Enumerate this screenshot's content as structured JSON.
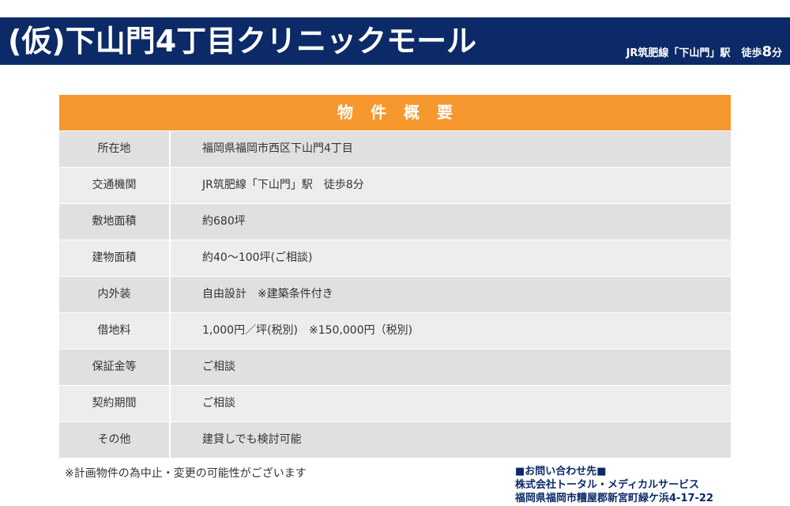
{
  "header": {
    "title": "(仮)下山門4丁目クリニックモール",
    "access_line": "JR筑肥線「下山門」駅",
    "access_walk": "徒歩",
    "access_minutes": "8",
    "access_unit": "分"
  },
  "table": {
    "heading": "物件概要",
    "rows": [
      {
        "label": "所在地",
        "value": "福岡県福岡市西区下山門4丁目"
      },
      {
        "label": "交通機関",
        "value": "JR筑肥線「下山門」駅　徒歩8分"
      },
      {
        "label": "敷地面積",
        "value": "約680坪"
      },
      {
        "label": "建物面積",
        "value": "約40～100坪(ご相談)"
      },
      {
        "label": "内外装",
        "value": "自由設計　※建築条件付き"
      },
      {
        "label": "借地料",
        "value": "1,000円／坪(税別)　※150,000円（税別)"
      },
      {
        "label": "保証金等",
        "value": "ご相談"
      },
      {
        "label": "契約期間",
        "value": "ご相談"
      },
      {
        "label": "その他",
        "value": "建貸しでも検討可能"
      }
    ]
  },
  "footer": {
    "note": "※計画物件の為中止・変更の可能性がございます",
    "contact_heading": "■お問い合わせ先■",
    "company": "株式会社トータル・メディカルサービス",
    "address": "福岡県福岡市糟屋郡新宮町緑ケ浜4-17-22"
  },
  "colors": {
    "navy": "#0c2a67",
    "orange": "#f6982d",
    "row_dark": "#e0e0e0",
    "row_light": "#ededed"
  }
}
